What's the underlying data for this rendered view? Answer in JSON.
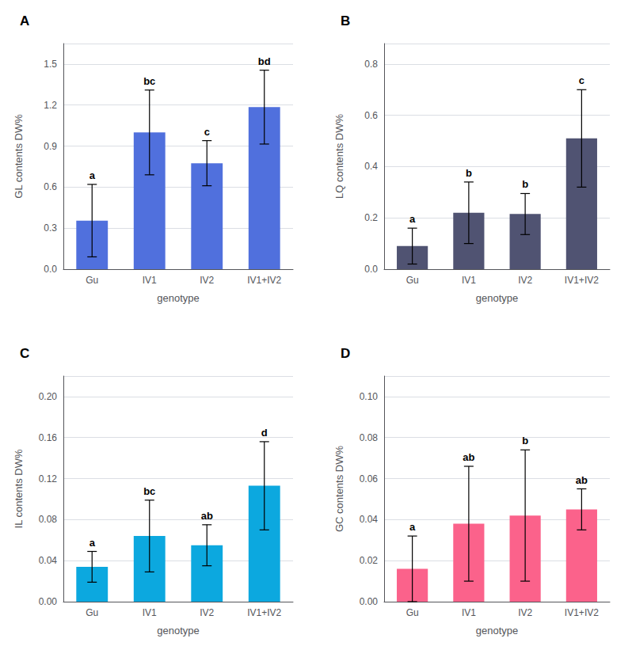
{
  "chart_data": [
    {
      "type": "bar",
      "title": "A",
      "xlabel": "genotype",
      "ylabel": "GL contents DW%",
      "categories": [
        "Gu",
        "IV1",
        "IV2",
        "IV1+IV2"
      ],
      "values": [
        0.355,
        1.0,
        0.775,
        1.185
      ],
      "errors": [
        0.265,
        0.31,
        0.165,
        0.27
      ],
      "annotations": [
        "a",
        "bc",
        "c",
        "bd"
      ],
      "ylim": [
        0,
        1.65
      ],
      "yticks": [
        {
          "value": 0.0,
          "label": "0.0"
        },
        0.3,
        0.6,
        0.9,
        1.2,
        1.5
      ],
      "grid": true
    },
    {
      "type": "bar",
      "title": "B",
      "xlabel": "genotype",
      "ylabel": "LQ contents DW%",
      "categories": [
        "Gu",
        "IV1",
        "IV2",
        "IV1+IV2"
      ],
      "values": [
        0.09,
        0.22,
        0.215,
        0.51
      ],
      "errors": [
        0.07,
        0.12,
        0.08,
        0.19
      ],
      "annotations": [
        "a",
        "b",
        "b",
        "c"
      ],
      "ylim": [
        0,
        0.88
      ],
      "yticks": [
        {
          "value": 0.0,
          "label": "0.0"
        },
        0.2,
        0.4,
        0.6,
        0.8
      ],
      "grid": true
    },
    {
      "type": "bar",
      "title": "C",
      "xlabel": "genotype",
      "ylabel": "IL contents DW%",
      "categories": [
        "Gu",
        "IV1",
        "IV2",
        "IV1+IV2"
      ],
      "values": [
        0.034,
        0.064,
        0.055,
        0.113
      ],
      "errors": [
        0.015,
        0.035,
        0.02,
        0.043
      ],
      "annotations": [
        "a",
        "bc",
        "ab",
        "d"
      ],
      "ylim": [
        0,
        0.22
      ],
      "yticks": [
        {
          "value": 0.0,
          "label": "0.00"
        },
        0.04,
        0.08,
        0.12,
        0.16,
        {
          "value": 0.2,
          "label": "0.20"
        }
      ],
      "grid": true
    },
    {
      "type": "bar",
      "title": "D",
      "xlabel": "genotype",
      "ylabel": "GC contents DW%",
      "categories": [
        "Gu",
        "IV1",
        "IV2",
        "IV1+IV2"
      ],
      "values": [
        0.016,
        0.038,
        0.042,
        0.045
      ],
      "errors": [
        0.016,
        0.028,
        0.032,
        0.01
      ],
      "annotations": [
        "a",
        "ab",
        "b",
        "ab"
      ],
      "ylim": [
        0,
        0.11
      ],
      "yticks": [
        {
          "value": 0.0,
          "label": "0.00"
        },
        0.02,
        0.04,
        0.06,
        0.08,
        {
          "value": 0.1,
          "label": "0.10"
        }
      ],
      "grid": true
    }
  ]
}
